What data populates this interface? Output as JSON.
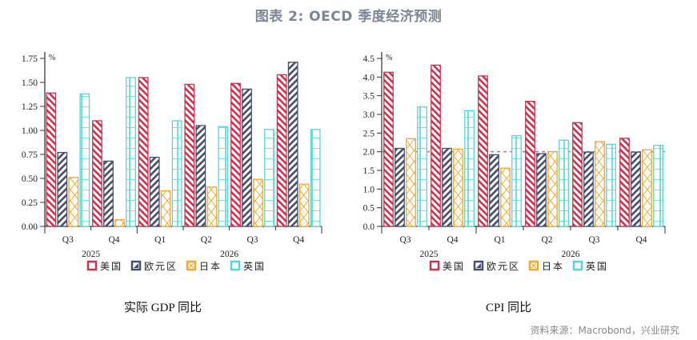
{
  "header": {
    "title": "图表 2:  OECD 季度经济预测"
  },
  "legend": [
    {
      "label": "美国",
      "color": "#c8344f",
      "pattern": "diag-down"
    },
    {
      "label": "欧元区",
      "color": "#46506e",
      "pattern": "diag-up"
    },
    {
      "label": "日本",
      "color": "#f0a830",
      "pattern": "crosshatch"
    },
    {
      "label": "英国",
      "color": "#55d6d6",
      "pattern": "grid"
    }
  ],
  "captions": {
    "gdp": "实际 GDP 同比",
    "cpi": "CPI 同比"
  },
  "source": "资料来源：Macrobond，兴业研究",
  "chart_data": [
    {
      "type": "bar",
      "title": "实际 GDP 同比",
      "ylabel": "%",
      "xlabel": "",
      "ylim": [
        0,
        1.75
      ],
      "yticks": [
        "0.00",
        "0.25",
        "0.50",
        "0.75",
        "1.00",
        "1.25",
        "1.50",
        "1.75"
      ],
      "ytick_values": [
        0,
        0.25,
        0.5,
        0.75,
        1.0,
        1.25,
        1.5,
        1.75
      ],
      "categories": [
        "Q3",
        "Q4",
        "Q1",
        "Q2",
        "Q3",
        "Q4"
      ],
      "year_groups": [
        {
          "label": "2025",
          "span": [
            0,
            1
          ]
        },
        {
          "label": "2026",
          "span": [
            2,
            5
          ]
        }
      ],
      "grid": false,
      "legend_position": "bottom",
      "series": [
        {
          "name": "美国",
          "values": [
            1.39,
            1.1,
            1.55,
            1.48,
            1.49,
            1.58
          ]
        },
        {
          "name": "欧元区",
          "values": [
            0.77,
            0.68,
            0.72,
            1.05,
            1.43,
            1.71
          ]
        },
        {
          "name": "日本",
          "values": [
            0.51,
            0.07,
            0.37,
            0.41,
            0.49,
            0.44
          ]
        },
        {
          "name": "英国",
          "values": [
            1.38,
            1.55,
            1.1,
            1.04,
            1.01,
            1.01
          ]
        }
      ]
    },
    {
      "type": "bar",
      "title": "CPI 同比",
      "ylabel": "%",
      "xlabel": "",
      "ylim": [
        0,
        4.5
      ],
      "yticks": [
        "0.0",
        "0.5",
        "1.0",
        "1.5",
        "2.0",
        "2.5",
        "3.0",
        "3.5",
        "4.0",
        "4.5"
      ],
      "ytick_values": [
        0,
        0.5,
        1.0,
        1.5,
        2.0,
        2.5,
        3.0,
        3.5,
        4.0,
        4.5
      ],
      "categories": [
        "Q3",
        "Q4",
        "Q1",
        "Q2",
        "Q3",
        "Q4"
      ],
      "year_groups": [
        {
          "label": "2025",
          "span": [
            0,
            1
          ]
        },
        {
          "label": "2026",
          "span": [
            2,
            5
          ]
        }
      ],
      "grid": false,
      "reference_line": {
        "value": 2.0,
        "style": "dashed",
        "color": "#888888"
      },
      "legend_position": "bottom",
      "series": [
        {
          "name": "美国",
          "values": [
            4.13,
            4.32,
            4.03,
            3.35,
            2.78,
            2.36
          ]
        },
        {
          "name": "欧元区",
          "values": [
            2.09,
            2.09,
            1.92,
            1.95,
            1.99,
            1.99
          ]
        },
        {
          "name": "日本",
          "values": [
            2.35,
            2.07,
            1.56,
            2.0,
            2.27,
            2.05
          ]
        },
        {
          "name": "英国",
          "values": [
            3.2,
            3.1,
            2.43,
            2.31,
            2.2,
            2.17
          ]
        }
      ]
    }
  ]
}
